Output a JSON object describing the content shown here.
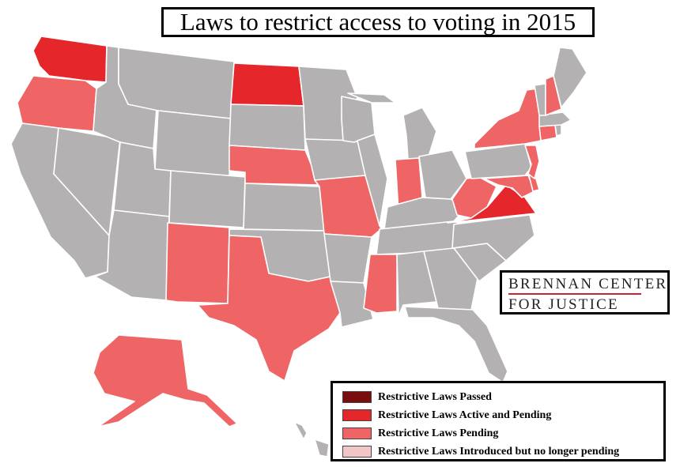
{
  "title": "Laws to restrict access to voting in 2015",
  "brand": {
    "line1": "BRENNAN CENTER",
    "line2": "FOR JUSTICE"
  },
  "colors": {
    "background": "#ffffff",
    "no_data": "#b3b1b1",
    "passed": "#7a0d0d",
    "active_pending": "#e5262a",
    "pending": "#ef6464",
    "introduced_not_pending": "#f0c6c6"
  },
  "legend": [
    {
      "label": "Restrictive Laws Passed",
      "color": "#7a0d0d"
    },
    {
      "label": "Restrictive Laws Active and Pending",
      "color": "#e5262a"
    },
    {
      "label": "Restrictive Laws Pending",
      "color": "#ef6464"
    },
    {
      "label": "Restrictive Laws Introduced but no longer pending",
      "color": "#f0c6c6"
    }
  ],
  "states": [
    {
      "code": "WA",
      "category": "active_pending"
    },
    {
      "code": "OR",
      "category": "pending"
    },
    {
      "code": "CA",
      "category": "none"
    },
    {
      "code": "NV",
      "category": "none"
    },
    {
      "code": "ID",
      "category": "none"
    },
    {
      "code": "MT",
      "category": "none"
    },
    {
      "code": "WY",
      "category": "none"
    },
    {
      "code": "UT",
      "category": "none"
    },
    {
      "code": "AZ",
      "category": "none"
    },
    {
      "code": "CO",
      "category": "none"
    },
    {
      "code": "NM",
      "category": "pending"
    },
    {
      "code": "ND",
      "category": "active_pending"
    },
    {
      "code": "SD",
      "category": "none"
    },
    {
      "code": "NE",
      "category": "pending"
    },
    {
      "code": "KS",
      "category": "none"
    },
    {
      "code": "OK",
      "category": "none"
    },
    {
      "code": "TX",
      "category": "pending"
    },
    {
      "code": "MN",
      "category": "none"
    },
    {
      "code": "IA",
      "category": "none"
    },
    {
      "code": "MO",
      "category": "pending"
    },
    {
      "code": "AR",
      "category": "none"
    },
    {
      "code": "LA",
      "category": "none"
    },
    {
      "code": "WI",
      "category": "none"
    },
    {
      "code": "IL",
      "category": "none"
    },
    {
      "code": "MI",
      "category": "none"
    },
    {
      "code": "IN",
      "category": "pending"
    },
    {
      "code": "OH",
      "category": "none"
    },
    {
      "code": "KY",
      "category": "none"
    },
    {
      "code": "TN",
      "category": "none"
    },
    {
      "code": "MS",
      "category": "pending"
    },
    {
      "code": "AL",
      "category": "none"
    },
    {
      "code": "GA",
      "category": "none"
    },
    {
      "code": "FL",
      "category": "none"
    },
    {
      "code": "SC",
      "category": "none"
    },
    {
      "code": "NC",
      "category": "none"
    },
    {
      "code": "VA",
      "category": "active_pending"
    },
    {
      "code": "WV",
      "category": "pending"
    },
    {
      "code": "MD",
      "category": "pending"
    },
    {
      "code": "DE",
      "category": "pending"
    },
    {
      "code": "PA",
      "category": "none"
    },
    {
      "code": "NJ",
      "category": "pending"
    },
    {
      "code": "NY",
      "category": "pending"
    },
    {
      "code": "CT",
      "category": "pending"
    },
    {
      "code": "RI",
      "category": "none"
    },
    {
      "code": "MA",
      "category": "none"
    },
    {
      "code": "VT",
      "category": "none"
    },
    {
      "code": "NH",
      "category": "pending"
    },
    {
      "code": "ME",
      "category": "none"
    },
    {
      "code": "AK",
      "category": "pending"
    },
    {
      "code": "HI",
      "category": "none"
    }
  ]
}
